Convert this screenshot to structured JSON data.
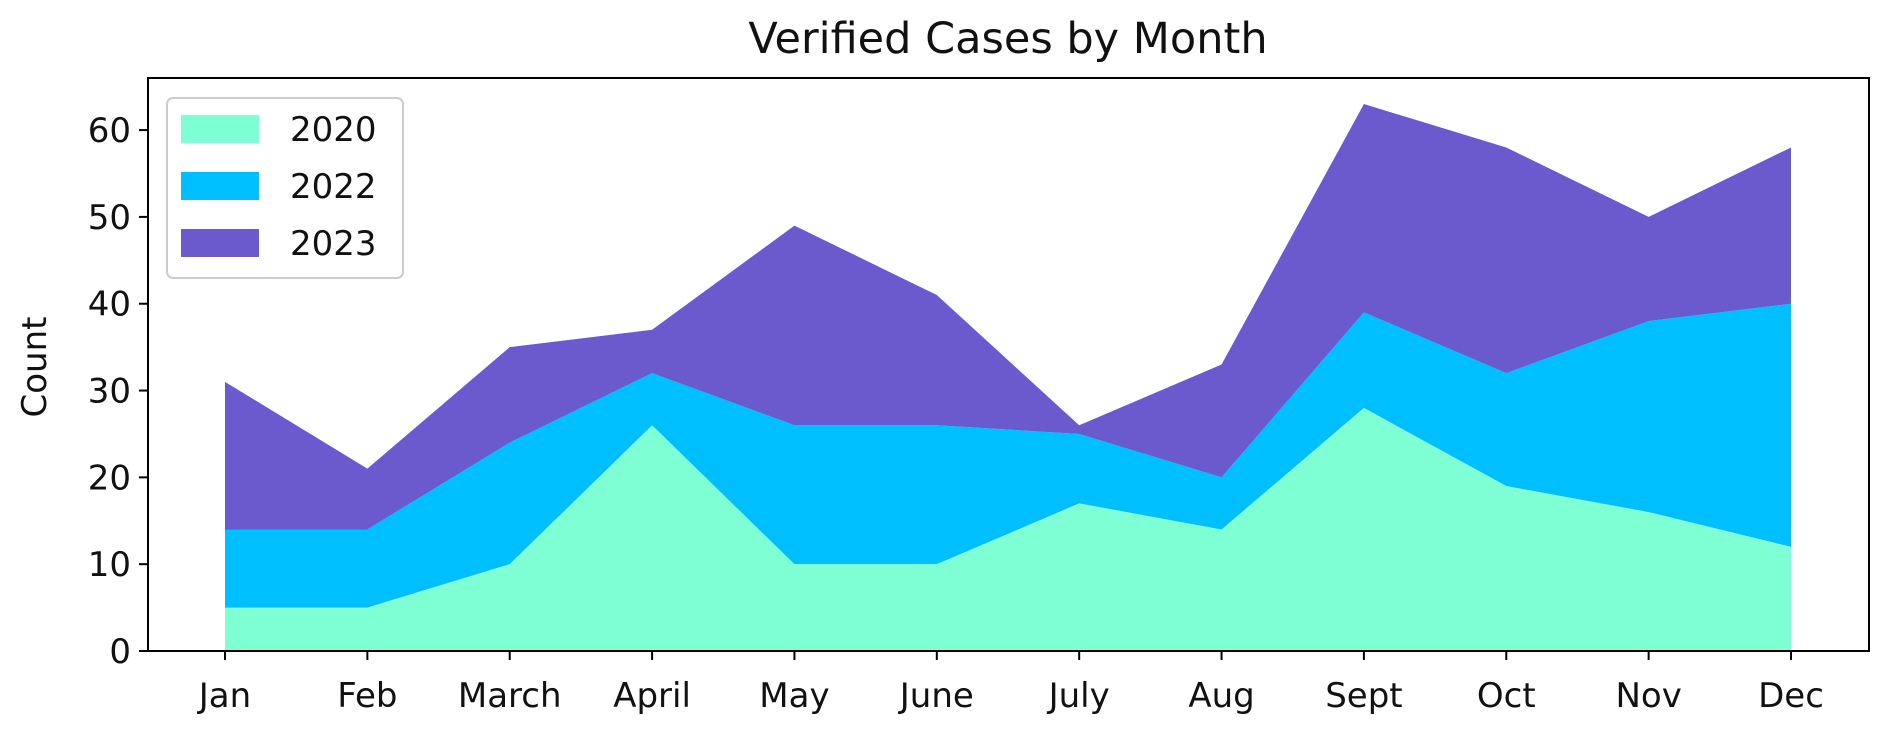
{
  "chart_data": {
    "type": "area",
    "stacked": true,
    "title": "Verified Cases by Month",
    "xlabel": "",
    "ylabel": "Count",
    "categories": [
      "Jan",
      "Feb",
      "March",
      "April",
      "May",
      "June",
      "July",
      "Aug",
      "Sept",
      "Oct",
      "Nov",
      "Dec"
    ],
    "series": [
      {
        "name": "2020",
        "color": "#7fffd4",
        "values": [
          5,
          5,
          10,
          26,
          10,
          10,
          17,
          14,
          28,
          19,
          16,
          12
        ]
      },
      {
        "name": "2022",
        "color": "#00bfff",
        "values": [
          9,
          9,
          14,
          6,
          16,
          16,
          8,
          6,
          11,
          13,
          22,
          28
        ]
      },
      {
        "name": "2023",
        "color": "#6a5acd",
        "values": [
          17,
          7,
          11,
          5,
          23,
          15,
          1,
          13,
          24,
          26,
          12,
          18
        ]
      }
    ],
    "ylim": [
      0,
      66
    ],
    "yticks": [
      0,
      10,
      20,
      30,
      40,
      50,
      60
    ],
    "grid": false,
    "legend_position": "top-left"
  }
}
